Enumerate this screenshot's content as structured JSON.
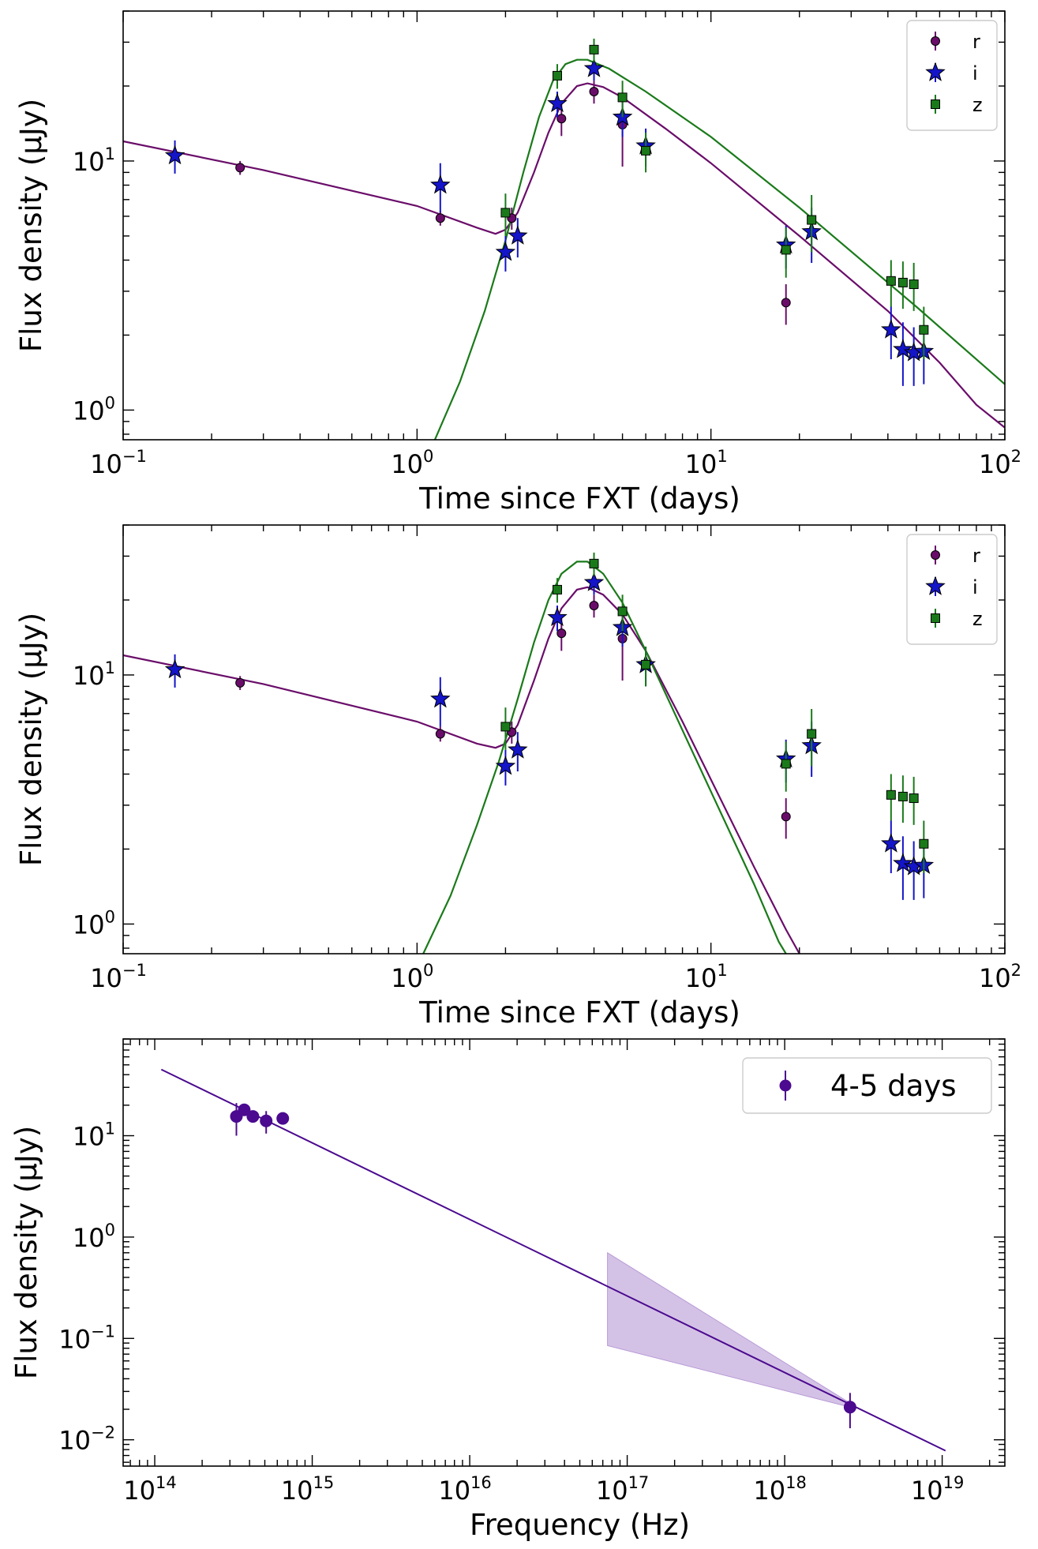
{
  "colors": {
    "r": "#6a0d6a",
    "i": "#1414c8",
    "z": "#1a7a1a",
    "marker_edge": "#000000",
    "sed": "#4b0a8f",
    "band_fill": "#b89ad6"
  },
  "chart_data": [
    {
      "type": "scatter",
      "title": "",
      "xlabel": "Time since FXT (days)",
      "ylabel": "Flux density (μJy)",
      "xscale": "log",
      "yscale": "log",
      "xlim": [
        0.1,
        100
      ],
      "ylim": [
        0.76,
        40
      ],
      "x_tick_labels": [
        "10⁻¹",
        "10⁰",
        "10¹",
        "10²"
      ],
      "y_tick_labels": [
        "10⁰",
        "10¹"
      ],
      "legend": {
        "placement": "top-right",
        "entries": [
          "r",
          "i",
          "z"
        ]
      },
      "series": [
        {
          "name": "r",
          "marker": "circle",
          "points": [
            [
              0.25,
              9.4,
              0.6
            ],
            [
              1.2,
              5.9,
              0.4
            ],
            [
              2.1,
              5.9,
              0.6
            ],
            [
              3.1,
              14.8,
              2.2
            ],
            [
              4.0,
              19.0,
              2.0
            ],
            [
              5.0,
              14.0,
              4.5
            ],
            [
              18.0,
              2.7,
              0.5
            ]
          ]
        },
        {
          "name": "i",
          "marker": "star",
          "points": [
            [
              0.15,
              10.5,
              1.6
            ],
            [
              1.2,
              8.0,
              1.8
            ],
            [
              2.0,
              4.3,
              0.7
            ],
            [
              2.2,
              5.0,
              0.9
            ],
            [
              3.0,
              17.0,
              2.0
            ],
            [
              4.0,
              23.5,
              2.5
            ],
            [
              5.0,
              15.0,
              2.5
            ],
            [
              6.0,
              11.5,
              2.0
            ],
            [
              18.0,
              4.6,
              0.9
            ],
            [
              22.0,
              5.2,
              1.3
            ],
            [
              41.0,
              2.1,
              0.5
            ],
            [
              45.0,
              1.75,
              0.5
            ],
            [
              49.0,
              1.7,
              0.45
            ],
            [
              53.0,
              1.72,
              0.45
            ]
          ]
        },
        {
          "name": "z",
          "marker": "square",
          "points": [
            [
              2.0,
              6.2,
              1.2
            ],
            [
              3.0,
              22.0,
              2.5
            ],
            [
              4.0,
              28.0,
              3.0
            ],
            [
              5.0,
              18.0,
              3.0
            ],
            [
              6.0,
              11.0,
              2.0
            ],
            [
              18.0,
              4.4,
              1.0
            ],
            [
              22.0,
              5.8,
              1.5
            ],
            [
              41.0,
              3.3,
              0.7
            ],
            [
              45.0,
              3.25,
              0.7
            ],
            [
              49.0,
              3.2,
              0.7
            ],
            [
              53.0,
              2.1,
              0.5
            ]
          ]
        }
      ],
      "model_curves": [
        {
          "band": "r",
          "points": [
            [
              0.1,
              12.0
            ],
            [
              0.3,
              9.2
            ],
            [
              1.0,
              6.6
            ],
            [
              1.6,
              5.4
            ],
            [
              1.85,
              5.1
            ],
            [
              2.0,
              5.3
            ],
            [
              2.2,
              6.2
            ],
            [
              2.5,
              9.0
            ],
            [
              2.8,
              13.0
            ],
            [
              3.1,
              17.0
            ],
            [
              3.5,
              20.0
            ],
            [
              3.8,
              20.5
            ],
            [
              4.3,
              19.8
            ],
            [
              5.0,
              18.0
            ],
            [
              7.0,
              13.5
            ],
            [
              10.0,
              9.8
            ],
            [
              20.0,
              5.0
            ],
            [
              40.0,
              2.5
            ],
            [
              60.0,
              1.55
            ],
            [
              80.0,
              1.05
            ],
            [
              100.0,
              0.85
            ]
          ]
        },
        {
          "band": "z",
          "points": [
            [
              1.15,
              0.76
            ],
            [
              1.4,
              1.3
            ],
            [
              1.7,
              2.5
            ],
            [
              2.0,
              4.8
            ],
            [
              2.3,
              9.0
            ],
            [
              2.6,
              15.0
            ],
            [
              2.9,
              21.0
            ],
            [
              3.2,
              24.5
            ],
            [
              3.5,
              25.5
            ],
            [
              3.8,
              25.5
            ],
            [
              4.5,
              23.5
            ],
            [
              6.0,
              19.0
            ],
            [
              10.0,
              12.5
            ],
            [
              20.0,
              6.5
            ],
            [
              50.0,
              2.6
            ],
            [
              100.0,
              1.27
            ]
          ]
        }
      ]
    },
    {
      "type": "scatter",
      "title": "",
      "xlabel": "Time since FXT (days)",
      "ylabel": "Flux density (μJy)",
      "xscale": "log",
      "yscale": "log",
      "xlim": [
        0.1,
        100
      ],
      "ylim": [
        0.76,
        40
      ],
      "x_tick_labels": [
        "10⁻¹",
        "10⁰",
        "10¹",
        "10²"
      ],
      "y_tick_labels": [
        "10⁰",
        "10¹"
      ],
      "legend": {
        "placement": "top-right",
        "entries": [
          "r",
          "i",
          "z"
        ]
      },
      "series": [
        {
          "name": "r",
          "marker": "circle",
          "points": [
            [
              0.25,
              9.3,
              0.6
            ],
            [
              1.2,
              5.8,
              0.4
            ],
            [
              2.1,
              5.9,
              0.6
            ],
            [
              3.1,
              14.7,
              2.2
            ],
            [
              4.0,
              19.0,
              2.0
            ],
            [
              5.0,
              14.0,
              4.5
            ],
            [
              18.0,
              2.7,
              0.5
            ]
          ]
        },
        {
          "name": "i",
          "marker": "star",
          "points": [
            [
              0.15,
              10.5,
              1.6
            ],
            [
              1.2,
              8.0,
              1.8
            ],
            [
              2.0,
              4.3,
              0.7
            ],
            [
              2.2,
              5.0,
              0.9
            ],
            [
              3.0,
              17.0,
              2.0
            ],
            [
              4.0,
              23.5,
              2.5
            ],
            [
              5.0,
              15.5,
              2.5
            ],
            [
              6.0,
              11.0,
              2.0
            ],
            [
              18.0,
              4.6,
              0.9
            ],
            [
              22.0,
              5.2,
              1.3
            ],
            [
              41.0,
              2.1,
              0.5
            ],
            [
              45.0,
              1.75,
              0.5
            ],
            [
              49.0,
              1.7,
              0.45
            ],
            [
              53.0,
              1.72,
              0.45
            ]
          ]
        },
        {
          "name": "z",
          "marker": "square",
          "points": [
            [
              2.0,
              6.2,
              1.2
            ],
            [
              3.0,
              22.0,
              2.5
            ],
            [
              4.0,
              28.0,
              3.0
            ],
            [
              5.0,
              18.0,
              3.0
            ],
            [
              6.0,
              11.0,
              2.0
            ],
            [
              18.0,
              4.4,
              1.0
            ],
            [
              22.0,
              5.8,
              1.5
            ],
            [
              41.0,
              3.3,
              0.7
            ],
            [
              45.0,
              3.25,
              0.7
            ],
            [
              49.0,
              3.2,
              0.7
            ],
            [
              53.0,
              2.1,
              0.5
            ]
          ]
        }
      ],
      "model_curves": [
        {
          "band": "r",
          "points": [
            [
              0.1,
              12.0
            ],
            [
              0.3,
              9.2
            ],
            [
              1.0,
              6.5
            ],
            [
              1.6,
              5.3
            ],
            [
              1.85,
              5.1
            ],
            [
              2.0,
              5.3
            ],
            [
              2.2,
              6.3
            ],
            [
              2.5,
              9.5
            ],
            [
              2.8,
              14.0
            ],
            [
              3.1,
              18.5
            ],
            [
              3.5,
              22.0
            ],
            [
              3.8,
              22.5
            ],
            [
              4.3,
              21.0
            ],
            [
              5.0,
              17.5
            ],
            [
              6.0,
              12.5
            ],
            [
              8.0,
              6.5
            ],
            [
              10.0,
              3.8
            ],
            [
              14.0,
              1.7
            ],
            [
              18.0,
              0.95
            ],
            [
              20.0,
              0.76
            ]
          ]
        },
        {
          "band": "z",
          "points": [
            [
              1.05,
              0.76
            ],
            [
              1.3,
              1.3
            ],
            [
              1.6,
              2.5
            ],
            [
              1.9,
              4.5
            ],
            [
              2.2,
              8.0
            ],
            [
              2.5,
              13.5
            ],
            [
              2.8,
              20.0
            ],
            [
              3.1,
              25.5
            ],
            [
              3.5,
              28.5
            ],
            [
              3.8,
              28.5
            ],
            [
              4.3,
              25.5
            ],
            [
              5.0,
              19.5
            ],
            [
              6.0,
              12.5
            ],
            [
              8.0,
              6.0
            ],
            [
              10.0,
              3.4
            ],
            [
              14.0,
              1.45
            ],
            [
              17.0,
              0.85
            ],
            [
              18.0,
              0.76
            ]
          ]
        }
      ]
    },
    {
      "type": "scatter",
      "title": "",
      "xlabel": "Frequency (Hz)",
      "ylabel": "Flux density (μJy)",
      "xscale": "log",
      "yscale": "log",
      "xlim": [
        63000000000000.0,
        2.5e+19
      ],
      "ylim": [
        0.0055,
        90
      ],
      "x_tick_labels": [
        "10¹⁴",
        "10¹⁵",
        "10¹⁶",
        "10¹⁷",
        "10¹⁸",
        "10¹⁹"
      ],
      "y_tick_labels": [
        "10⁻²",
        "10⁻¹",
        "10⁰",
        "10¹"
      ],
      "legend": {
        "placement": "top-right",
        "entries": [
          "4-5 days"
        ]
      },
      "series": [
        {
          "name": "4-5 days",
          "marker": "circle",
          "points": [
            [
              330000000000000.0,
              15.5,
              5.5
            ],
            [
              370000000000000.0,
              18.0,
              2.0
            ],
            [
              420000000000000.0,
              15.5,
              2.0
            ],
            [
              510000000000000.0,
              14.0,
              3.5
            ],
            [
              650000000000000.0,
              14.8,
              1.5
            ],
            [
              2.6e+18,
              0.021,
              0.008
            ]
          ]
        }
      ],
      "model_line": [
        [
          110000000000000.0,
          45.0
        ],
        [
          1.05e+19,
          0.0078
        ]
      ],
      "xray_band": {
        "upper": [
          [
            7.5e+16,
            0.7
          ],
          [
            2.6e+18,
            0.023
          ]
        ],
        "lower": [
          [
            7.5e+16,
            0.085
          ],
          [
            2.6e+18,
            0.021
          ]
        ]
      }
    }
  ]
}
